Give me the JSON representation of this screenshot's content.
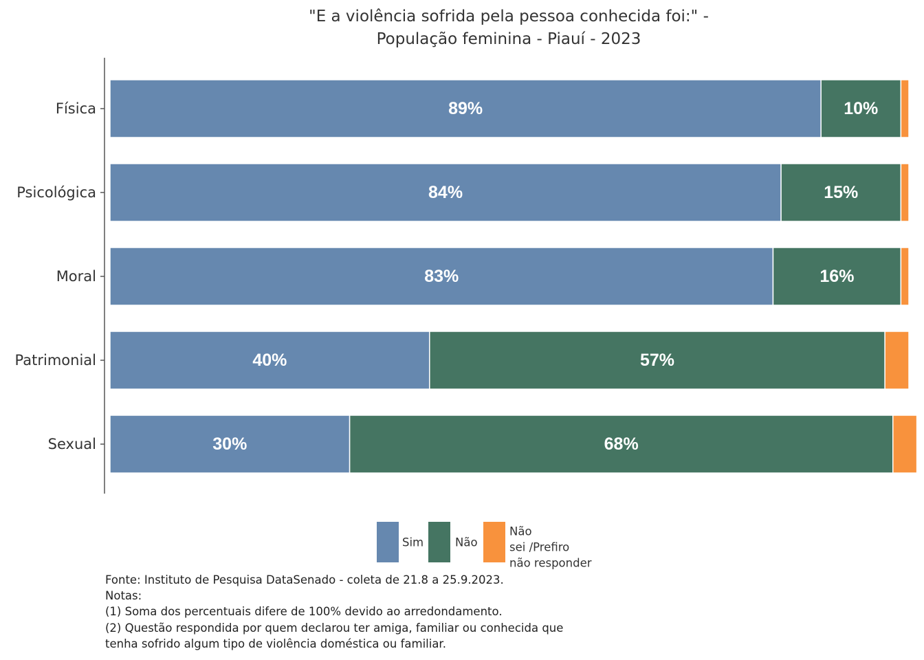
{
  "chart_data": {
    "type": "bar",
    "orientation": "horizontal",
    "stacked": true,
    "title_lines": [
      "\"E a violência sofrida pela pessoa conhecida foi:\" -",
      "População feminina - Piauí - 2023"
    ],
    "categories": [
      "Física",
      "Psicológica",
      "Moral",
      "Patrimonial",
      "Sexual"
    ],
    "series": [
      {
        "name": "Sim",
        "color": "#6688AF",
        "values": [
          89,
          84,
          83,
          40,
          30
        ],
        "labels": [
          "89%",
          "84%",
          "83%",
          "40%",
          "30%"
        ]
      },
      {
        "name": "Não",
        "color": "#457562",
        "values": [
          10,
          15,
          16,
          57,
          68
        ],
        "labels": [
          "10%",
          "15%",
          "16%",
          "57%",
          "68%"
        ]
      },
      {
        "name": "Não sei /Prefiro não responder",
        "legend_lines": [
          "Não",
          "sei /Prefiro",
          "não responder"
        ],
        "color": "#F8923D",
        "values": [
          1,
          1,
          1,
          3,
          3
        ],
        "labels": [
          "",
          "",
          "",
          "",
          ""
        ]
      }
    ],
    "xlim": [
      0,
      100
    ],
    "legend_position": "bottom",
    "grid": false
  },
  "notes": [
    "Fonte: Instituto de Pesquisa DataSenado - coleta de 21.8 a 25.9.2023.",
    "Notas:",
    "(1) Soma dos percentuais difere de 100% devido ao arredondamento.",
    "(2) Questão respondida por quem declarou ter amiga, familiar ou conhecida que",
    "tenha sofrido algum tipo de violência doméstica ou familiar."
  ]
}
